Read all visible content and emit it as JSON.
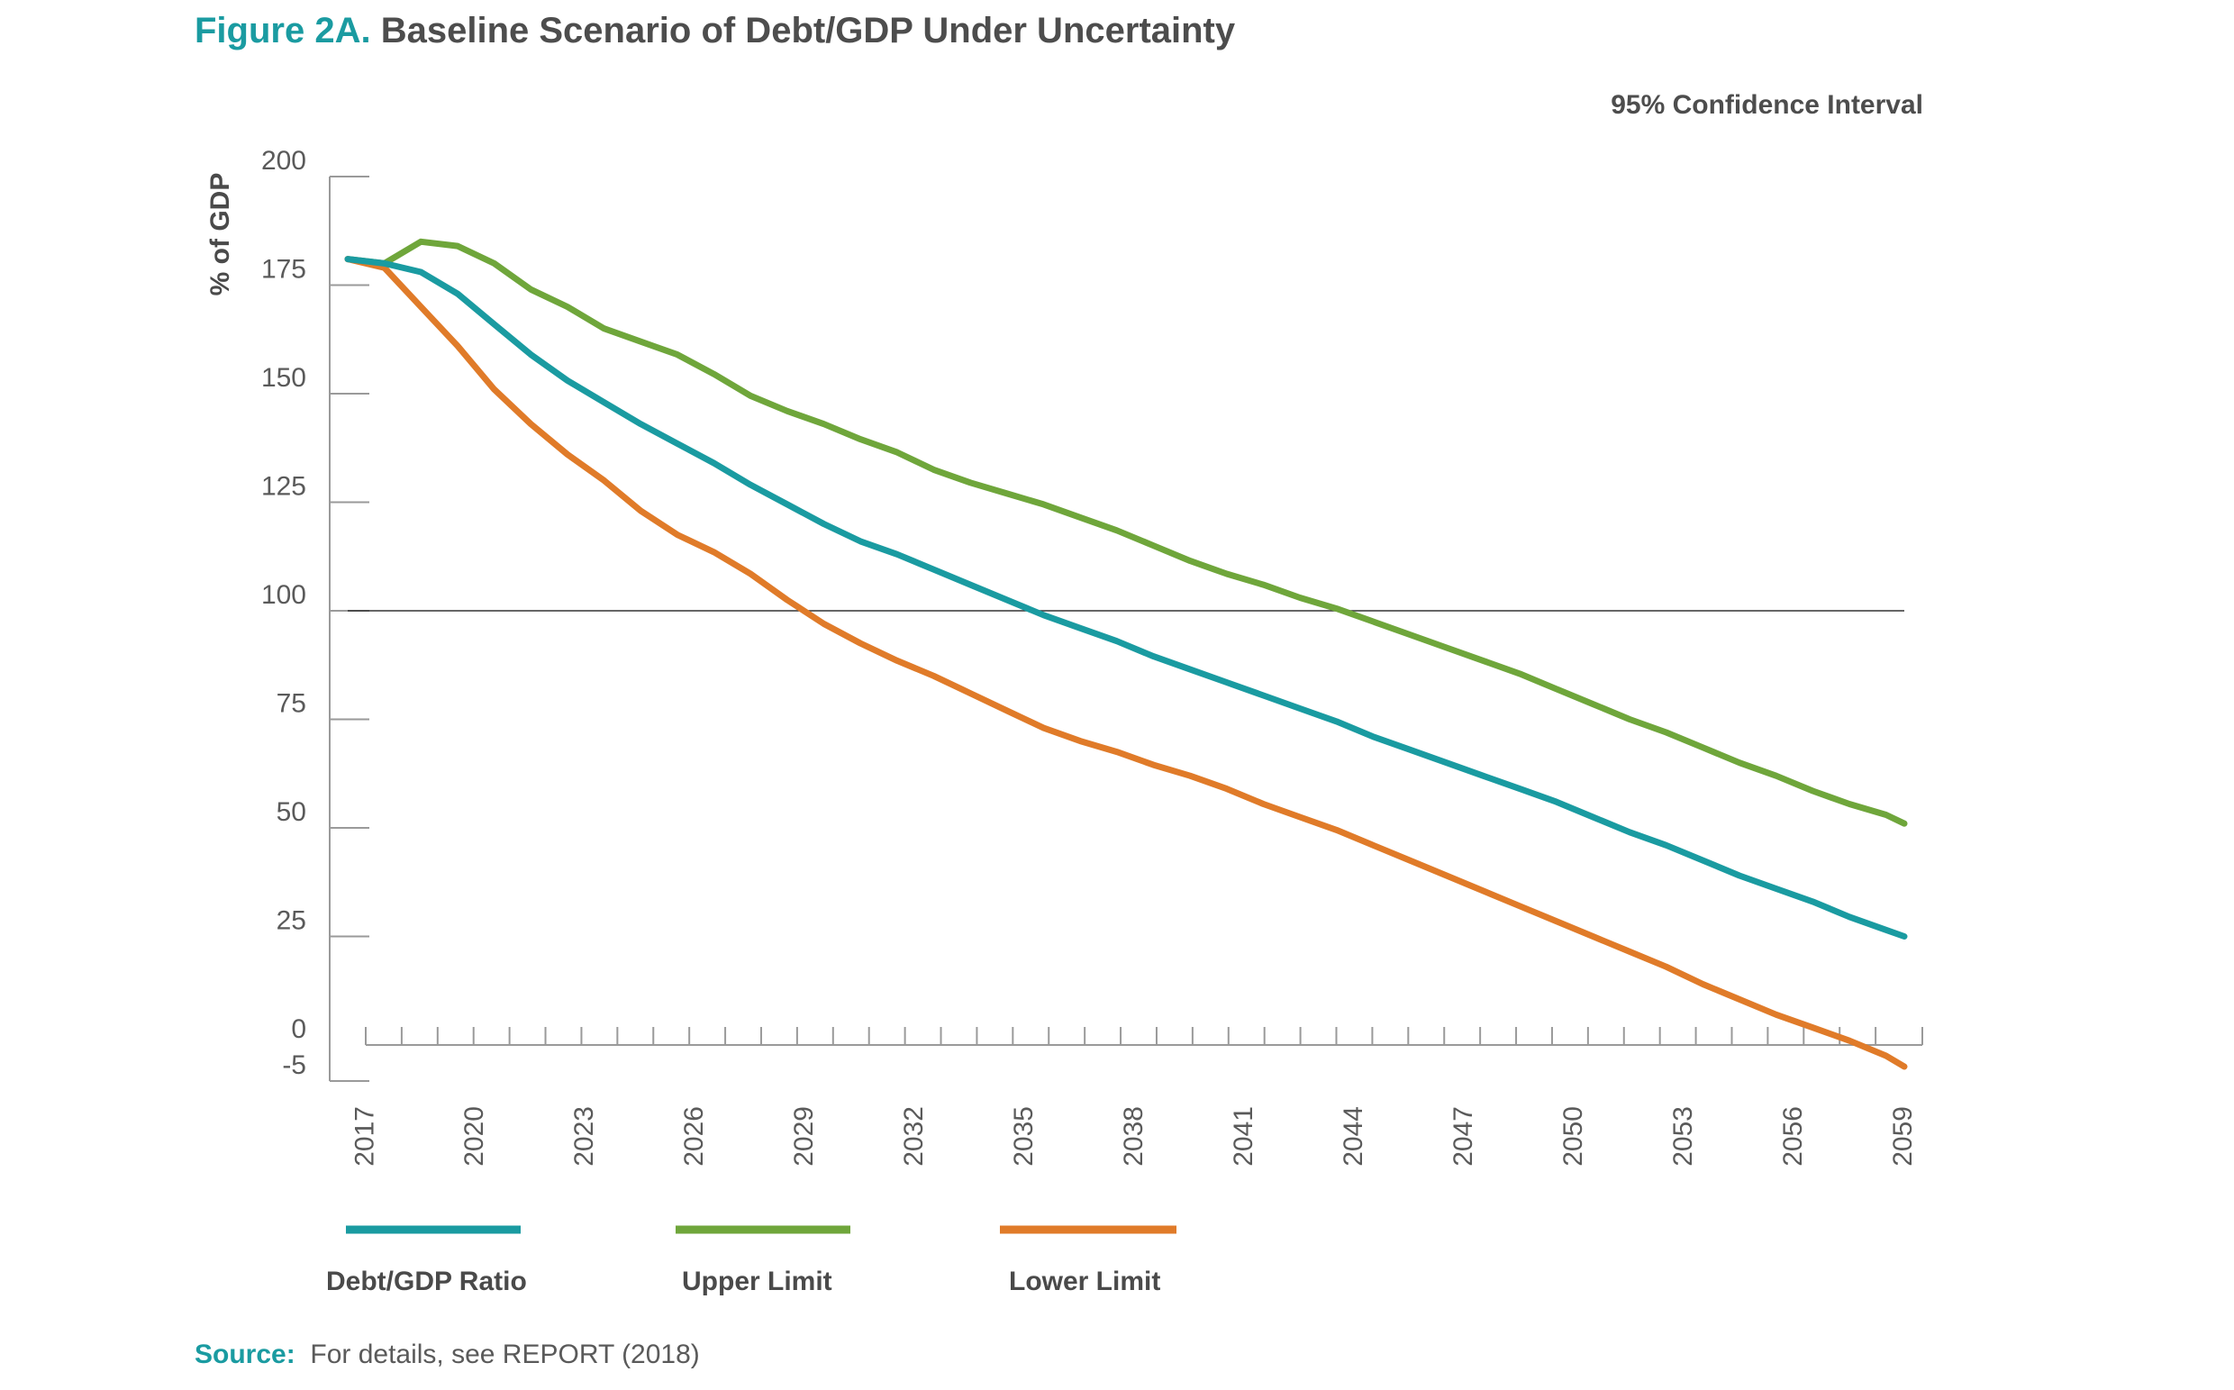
{
  "header": {
    "figure_label": "Figure 2A.",
    "title": "Baseline Scenario of Debt/GDP Under Uncertainty",
    "subtitle": "95% Confidence Interval"
  },
  "source": {
    "label": "Source:",
    "text": "For details, see REPORT (2018)"
  },
  "chart_data": {
    "type": "line",
    "title": "Baseline Scenario of Debt/GDP Under Uncertainty",
    "subtitle": "95% Confidence Interval",
    "xlabel": "",
    "ylabel": "% of GDP",
    "ylim": [
      -5,
      200
    ],
    "xlim": [
      2016.5,
      2059
    ],
    "yticks": [
      200,
      175,
      150,
      125,
      100,
      75,
      50,
      25,
      0,
      -5
    ],
    "xtick_labels": [
      "2017",
      "2020",
      "2023",
      "2026",
      "2029",
      "2032",
      "2035",
      "2038",
      "2041",
      "2044",
      "2047",
      "2050",
      "2053",
      "2056",
      "2059"
    ],
    "reference_line": 100,
    "grid": false,
    "legend": "bottom",
    "colors": {
      "debt": "#1a9ba1",
      "upper": "#6fa63b",
      "lower": "#e07b29",
      "axis": "#9a9a9a",
      "ref": "#333333"
    },
    "x": [
      2016.5,
      2017.5,
      2018.5,
      2019.5,
      2020.5,
      2021.5,
      2022.5,
      2023.5,
      2024.5,
      2025.5,
      2026.5,
      2027.5,
      2028.5,
      2029.5,
      2030.5,
      2031.5,
      2032.5,
      2033.5,
      2034.5,
      2035.5,
      2036.5,
      2037.5,
      2038.5,
      2039.5,
      2040.5,
      2041.5,
      2042.5,
      2043.5,
      2044.5,
      2045.5,
      2046.5,
      2047.5,
      2048.5,
      2049.5,
      2050.5,
      2051.5,
      2052.5,
      2053.5,
      2054.5,
      2055.5,
      2056.5,
      2057.5,
      2058.5,
      2059
    ],
    "series": [
      {
        "key": "debt",
        "name": "Debt/GDP Ratio",
        "values": [
          181,
          180,
          178,
          173,
          166,
          159,
          153,
          148,
          143,
          138.5,
          134,
          129,
          124.5,
          120,
          116,
          113,
          109.5,
          106,
          102.5,
          99,
          96,
          93,
          89.5,
          86.5,
          83.5,
          80.5,
          77.5,
          74.5,
          71,
          68,
          65,
          62,
          59,
          56,
          52.5,
          49,
          46,
          42.5,
          39,
          36,
          33,
          29.5,
          26.5,
          25
        ]
      },
      {
        "key": "upper",
        "name": "Upper Limit",
        "values": [
          181,
          180,
          185,
          184,
          180,
          174,
          170,
          165,
          162,
          159,
          154.5,
          149.5,
          146,
          143,
          139.5,
          136.5,
          132.5,
          129.5,
          127,
          124.5,
          121.5,
          118.5,
          115,
          111.5,
          108.5,
          106,
          103,
          100.5,
          97.5,
          94.5,
          91.5,
          88.5,
          85.5,
          82,
          78.5,
          75,
          72,
          68.5,
          65,
          62,
          58.5,
          55.5,
          53,
          51
        ]
      },
      {
        "key": "lower",
        "name": "Lower Limit",
        "values": [
          181,
          179,
          170,
          161,
          151,
          143,
          136,
          130,
          123,
          117.5,
          113.5,
          108.5,
          102.5,
          97,
          92.5,
          88.5,
          85,
          81,
          77,
          73,
          70,
          67.5,
          64.5,
          62,
          59,
          55.5,
          52.5,
          49.5,
          46,
          42.5,
          39,
          35.5,
          32,
          28.5,
          25,
          21.5,
          18,
          14,
          10.5,
          7,
          4,
          1,
          -1.5,
          -3
        ]
      }
    ]
  }
}
